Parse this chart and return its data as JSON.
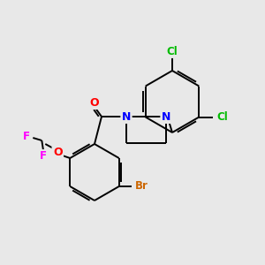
{
  "background_color": "#e8e8e8",
  "bond_color": "#000000",
  "atom_colors": {
    "Cl": "#00bb00",
    "N": "#0000ff",
    "O": "#ff0000",
    "F": "#ff00ff",
    "Br": "#cc6600",
    "C": "#000000"
  },
  "figsize": [
    3.0,
    3.0
  ],
  "dpi": 100,
  "xlim": [
    0,
    300
  ],
  "ylim": [
    0,
    300
  ]
}
